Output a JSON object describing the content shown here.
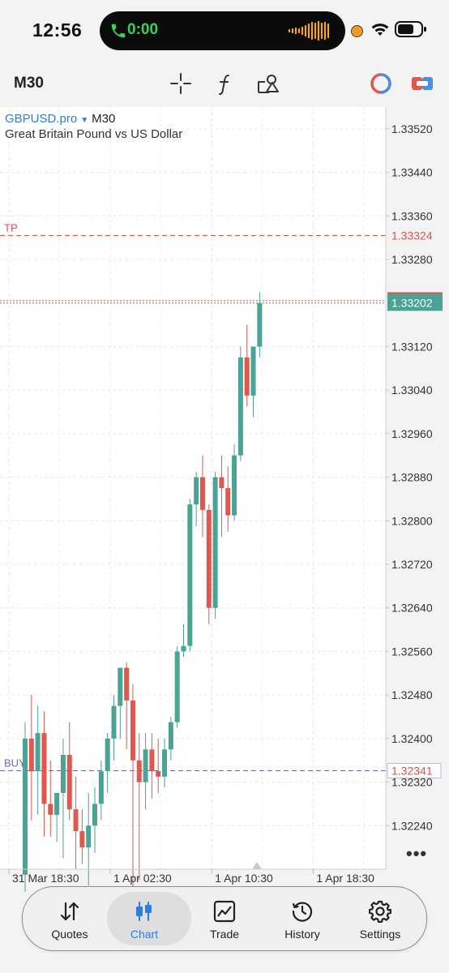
{
  "status_bar": {
    "time": "12:56",
    "call_timer": "0:00"
  },
  "toolbar": {
    "timeframe": "M30",
    "icons": [
      "crosshair-icon",
      "indicators-icon",
      "objects-icon",
      "one-click-trading-icon",
      "trade-panel-icon"
    ]
  },
  "chart": {
    "symbol": "GBPUSD.pro",
    "timeframe": "M30",
    "description": "Great Britain Pound vs US Dollar",
    "colors": {
      "bull": "#4aa394",
      "bear": "#e0574f",
      "tp": "#d9534f",
      "buy": "#6b6bb3",
      "ask": "#e0574f"
    }
  },
  "chart_data": {
    "type": "candlestick",
    "y_ticks": [
      "1.33520",
      "1.33440",
      "1.33360",
      "1.33280",
      "1.33120",
      "1.33040",
      "1.32960",
      "1.32880",
      "1.32800",
      "1.32720",
      "1.32640",
      "1.32560",
      "1.32480",
      "1.32400",
      "1.32320",
      "1.32240"
    ],
    "y_tick_values": [
      1.3352,
      1.3344,
      1.3336,
      1.3328,
      1.3312,
      1.3304,
      1.3296,
      1.3288,
      1.328,
      1.3272,
      1.3264,
      1.3256,
      1.3248,
      1.324,
      1.3232,
      1.3224
    ],
    "ylim": [
      1.3216,
      1.3356
    ],
    "x_labels": [
      "31 Mar 18:30",
      "1 Apr 02:30",
      "1 Apr 10:30",
      "1 Apr 18:30"
    ],
    "x_label_index": [
      0,
      16,
      32,
      48
    ],
    "levels": {
      "tp": {
        "label": "TP",
        "price": 1.33324,
        "price_text": "1.33324"
      },
      "current": {
        "price": 1.33202,
        "price_text": "1.33202"
      },
      "buy": {
        "label": "BUY 1",
        "price": 1.32341,
        "price_text": "1.32341"
      }
    },
    "candles": [
      {
        "o": 1.3215,
        "h": 1.3243,
        "l": 1.3205,
        "c": 1.324
      },
      {
        "o": 1.324,
        "h": 1.3248,
        "l": 1.3225,
        "c": 1.3234
      },
      {
        "o": 1.3234,
        "h": 1.3246,
        "l": 1.3226,
        "c": 1.3241
      },
      {
        "o": 1.3241,
        "h": 1.3245,
        "l": 1.3222,
        "c": 1.3228
      },
      {
        "o": 1.3228,
        "h": 1.3236,
        "l": 1.3222,
        "c": 1.3226
      },
      {
        "o": 1.3226,
        "h": 1.323,
        "l": 1.3221,
        "c": 1.323
      },
      {
        "o": 1.323,
        "h": 1.324,
        "l": 1.3218,
        "c": 1.3237
      },
      {
        "o": 1.3237,
        "h": 1.3243,
        "l": 1.3225,
        "c": 1.3227
      },
      {
        "o": 1.3227,
        "h": 1.3233,
        "l": 1.3216,
        "c": 1.3223
      },
      {
        "o": 1.3223,
        "h": 1.3227,
        "l": 1.3217,
        "c": 1.322
      },
      {
        "o": 1.322,
        "h": 1.323,
        "l": 1.3213,
        "c": 1.3224
      },
      {
        "o": 1.3224,
        "h": 1.3231,
        "l": 1.3219,
        "c": 1.3228
      },
      {
        "o": 1.3228,
        "h": 1.3236,
        "l": 1.3225,
        "c": 1.3234
      },
      {
        "o": 1.3234,
        "h": 1.3241,
        "l": 1.323,
        "c": 1.324
      },
      {
        "o": 1.324,
        "h": 1.3248,
        "l": 1.3236,
        "c": 1.3246
      },
      {
        "o": 1.3246,
        "h": 1.3253,
        "l": 1.324,
        "c": 1.3253
      },
      {
        "o": 1.3253,
        "h": 1.3254,
        "l": 1.3238,
        "c": 1.3247
      },
      {
        "o": 1.3247,
        "h": 1.325,
        "l": 1.321,
        "c": 1.3236
      },
      {
        "o": 1.3236,
        "h": 1.3241,
        "l": 1.3214,
        "c": 1.3232
      },
      {
        "o": 1.3232,
        "h": 1.3241,
        "l": 1.3227,
        "c": 1.3238
      },
      {
        "o": 1.3238,
        "h": 1.3241,
        "l": 1.3229,
        "c": 1.3234
      },
      {
        "o": 1.3234,
        "h": 1.324,
        "l": 1.323,
        "c": 1.3233
      },
      {
        "o": 1.3233,
        "h": 1.324,
        "l": 1.3231,
        "c": 1.3238
      },
      {
        "o": 1.3238,
        "h": 1.3244,
        "l": 1.3236,
        "c": 1.3243
      },
      {
        "o": 1.3243,
        "h": 1.3257,
        "l": 1.3242,
        "c": 1.3256
      },
      {
        "o": 1.3256,
        "h": 1.3261,
        "l": 1.3255,
        "c": 1.3257
      },
      {
        "o": 1.3257,
        "h": 1.3284,
        "l": 1.3256,
        "c": 1.3283
      },
      {
        "o": 1.3283,
        "h": 1.3289,
        "l": 1.3279,
        "c": 1.3288
      },
      {
        "o": 1.3288,
        "h": 1.3292,
        "l": 1.3277,
        "c": 1.3282
      },
      {
        "o": 1.3282,
        "h": 1.3283,
        "l": 1.3261,
        "c": 1.3264
      },
      {
        "o": 1.3264,
        "h": 1.3289,
        "l": 1.3262,
        "c": 1.3288
      },
      {
        "o": 1.3288,
        "h": 1.3292,
        "l": 1.3277,
        "c": 1.3286
      },
      {
        "o": 1.3286,
        "h": 1.329,
        "l": 1.3278,
        "c": 1.3281
      },
      {
        "o": 1.3281,
        "h": 1.3294,
        "l": 1.328,
        "c": 1.3292
      },
      {
        "o": 1.3292,
        "h": 1.3312,
        "l": 1.3291,
        "c": 1.331
      },
      {
        "o": 1.331,
        "h": 1.3316,
        "l": 1.3301,
        "c": 1.3303
      },
      {
        "o": 1.3303,
        "h": 1.3311,
        "l": 1.3299,
        "c": 1.3312
      },
      {
        "o": 1.3312,
        "h": 1.3322,
        "l": 1.331,
        "c": 1.332
      }
    ]
  },
  "more_label": "•••",
  "tabs": [
    {
      "label": "Quotes",
      "icon": "quotes-arrows-icon",
      "active": false
    },
    {
      "label": "Chart",
      "icon": "chart-candles-icon",
      "active": true
    },
    {
      "label": "Trade",
      "icon": "trade-chart-icon",
      "active": false
    },
    {
      "label": "History",
      "icon": "history-clock-icon",
      "active": false
    },
    {
      "label": "Settings",
      "icon": "settings-gear-icon",
      "active": false
    }
  ]
}
